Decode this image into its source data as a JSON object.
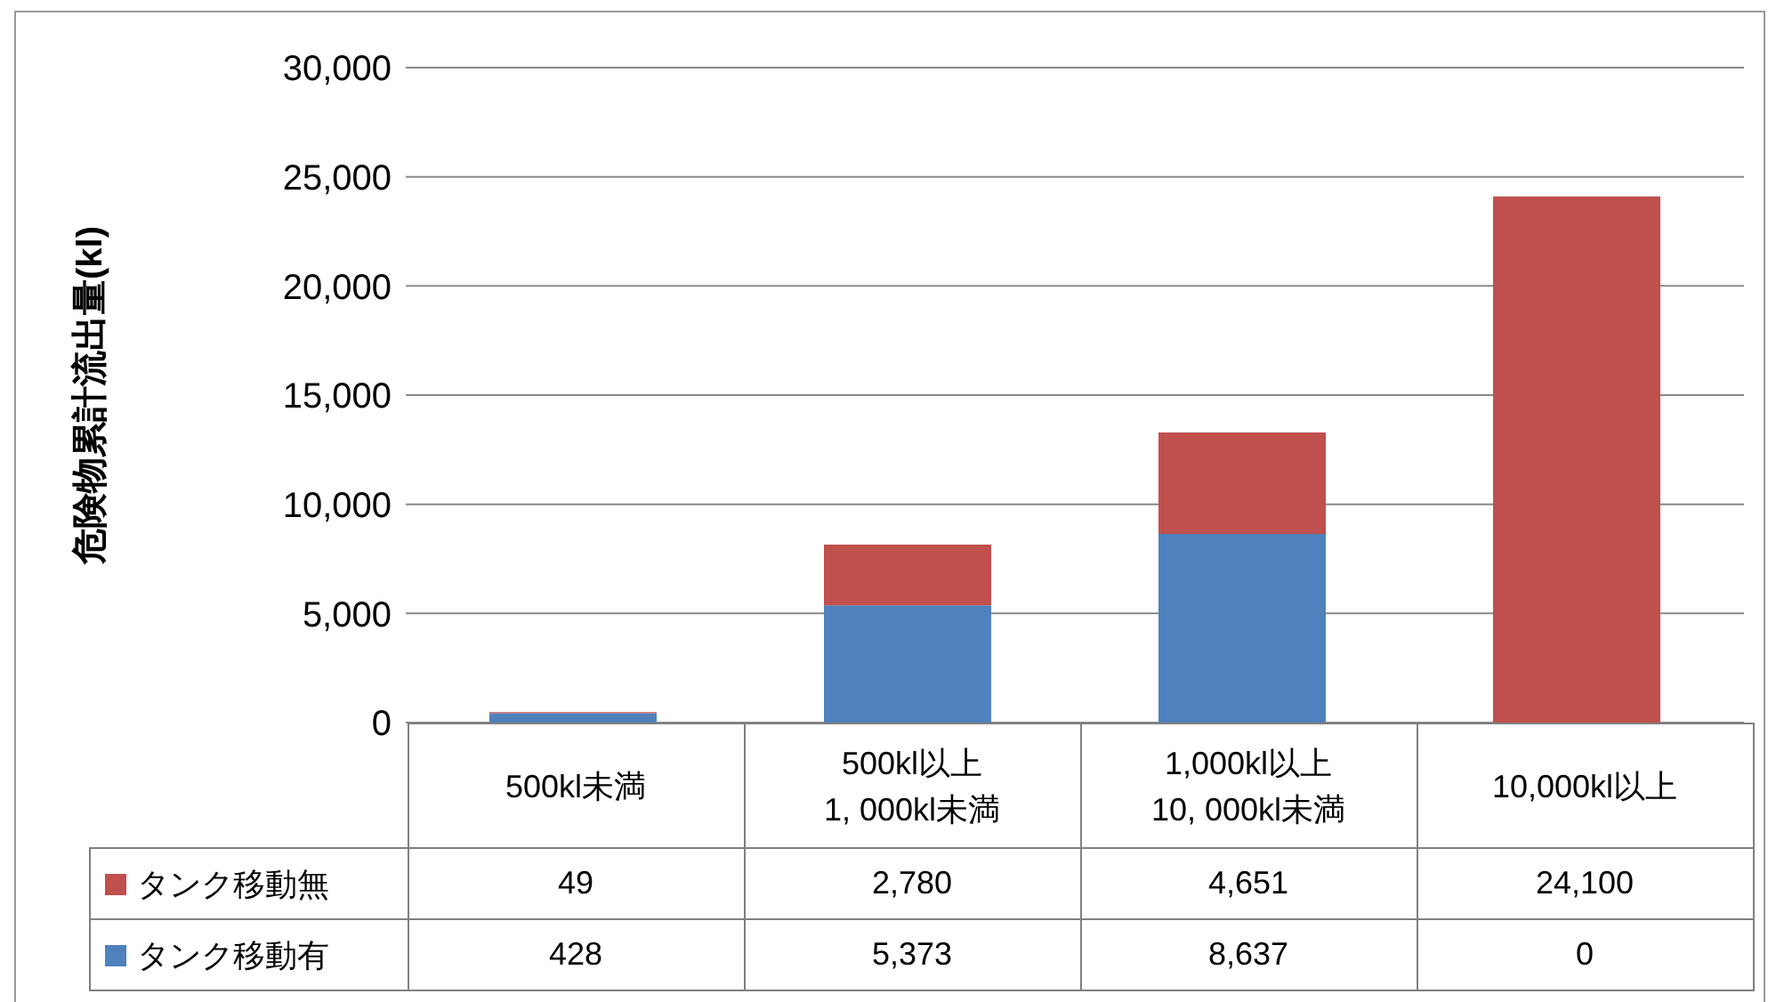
{
  "chart_data": {
    "type": "bar",
    "stacked": true,
    "ylabel": "危険物累計流出量(kl)",
    "categories": [
      "500kl未満",
      "500kl以上\n1, 000kl未満",
      "1,000kl以上\n10, 000kl未満",
      "10,000kl以上"
    ],
    "series": [
      {
        "name": "タンク移動有",
        "color": "#4f81bd",
        "values": [
          428,
          5373,
          8637,
          0
        ],
        "value_labels": [
          "428",
          "5,373",
          "8,637",
          "0"
        ]
      },
      {
        "name": "タンク移動無",
        "color": "#c0504d",
        "values": [
          49,
          2780,
          4651,
          24100
        ],
        "value_labels": [
          "49",
          "2,780",
          "4,651",
          "24,100"
        ]
      }
    ],
    "ylim": [
      0,
      30000
    ],
    "yticks": [
      0,
      {
        "value": 5000,
        "label": "5,000"
      },
      {
        "value": 10000,
        "label": "10,000"
      },
      {
        "value": 15000,
        "label": "15,000"
      },
      {
        "value": 20000,
        "label": "20,000"
      },
      {
        "value": 25000,
        "label": "25,000"
      },
      {
        "value": 30000,
        "label": "30,000"
      }
    ],
    "grid": "y",
    "legend": "bottom left"
  }
}
